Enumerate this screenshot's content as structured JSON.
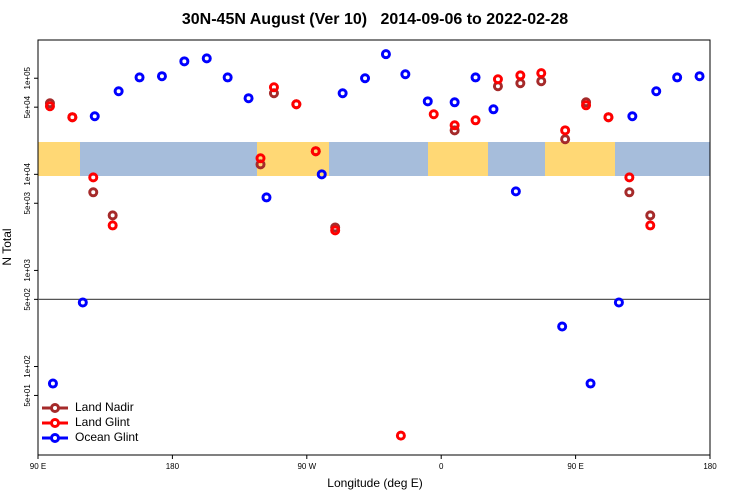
{
  "chart_data": {
    "type": "scatter",
    "title": "30N-45N August (Ver 10)   2014-09-06 to 2022-02-28",
    "x_label": "Longitude (deg E)",
    "y_label": "N Total",
    "log_y": true,
    "legend_position": "bottom-left",
    "reference_line": 500,
    "xlim": [
      90,
      540
    ],
    "xticks": [
      {
        "value": 90,
        "label": "90 E"
      },
      180,
      {
        "value": 270,
        "label": "90 W"
      },
      {
        "value": 360,
        "label": "0"
      },
      {
        "value": 450,
        "label": "90 E"
      },
      {
        "value": 540,
        "label": "180"
      }
    ],
    "ylim": [
      12,
      250000
    ],
    "yticks": [
      {
        "value": 50,
        "label": "5e+01"
      },
      {
        "value": 100,
        "label": "1e+02"
      },
      {
        "value": 500,
        "label": "5e+02"
      },
      {
        "value": 1000,
        "label": "1e+03"
      },
      {
        "value": 5000,
        "label": "5e+03"
      },
      {
        "value": 10000,
        "label": "1e+04"
      },
      {
        "value": 50000,
        "label": "5e+04"
      },
      {
        "value": 100000,
        "label": "1e+05"
      }
    ],
    "series": [
      {
        "name": "Land Nadir",
        "color": "#a52a2a",
        "x": [
          98,
          113,
          127,
          140,
          239,
          248,
          263,
          276,
          289,
          369,
          398,
          413,
          427,
          443,
          457,
          472,
          486,
          500
        ],
        "values": [
          54900,
          39300,
          6500,
          3740,
          12700,
          69800,
          53600,
          17400,
          2800,
          28700,
          82600,
          88700,
          93100,
          23200,
          56200,
          39300,
          6500,
          3740
        ]
      },
      {
        "name": "Land Glint",
        "color": "#ff0000",
        "x": [
          98,
          113,
          127,
          140,
          239,
          248,
          263,
          276,
          289,
          333,
          355,
          369,
          383,
          398,
          413,
          427,
          443,
          457,
          472,
          486,
          500
        ],
        "values": [
          51100,
          39300,
          9300,
          2940,
          14700,
          80600,
          53600,
          17400,
          2610,
          19.1,
          42200,
          32400,
          36500,
          97600,
          107000,
          113000,
          28700,
          52300,
          39300,
          9300,
          2940
        ]
      },
      {
        "name": "Ocean Glint",
        "color": "#0000ff",
        "x": [
          100,
          120,
          128,
          144,
          158,
          173,
          188,
          203,
          217,
          231,
          243,
          280,
          294,
          309,
          323,
          336,
          351,
          369,
          383,
          395,
          410,
          441,
          460,
          479,
          488,
          504,
          518,
          533
        ],
        "values": [
          66.5,
          464,
          40200,
          73200,
          102000,
          105000,
          150000,
          161000,
          102000,
          62000,
          5750,
          10000,
          69800,
          100000,
          178000,
          110000,
          57500,
          56200,
          102000,
          47500,
          6650,
          261,
          66.5,
          464,
          40200,
          73200,
          102000,
          105000
        ]
      }
    ]
  }
}
